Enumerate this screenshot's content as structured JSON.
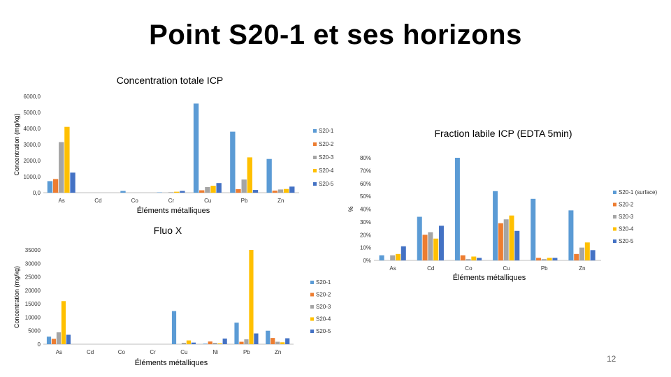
{
  "slide": {
    "title": "Point S20-1 et ses horizons",
    "page_number": "12"
  },
  "colors": {
    "S20-1": "#5B9BD5",
    "S20-2": "#ED7D31",
    "S20-3": "#A5A5A5",
    "S20-4": "#FFC000",
    "S20-5": "#4472C4"
  },
  "chart_data": [
    {
      "type": "bar",
      "title": "Concentration totale ICP",
      "xlabel": "Éléments métalliques",
      "ylabel": "Concentration (mg/kg)",
      "categories": [
        "As",
        "Cd",
        "Co",
        "Cr",
        "Cu",
        "Pb",
        "Zn"
      ],
      "ylim": [
        0,
        6000
      ],
      "yticks": [
        "0,0",
        "1000,0",
        "2000,0",
        "3000,0",
        "4000,0",
        "5000,0",
        "6000,0"
      ],
      "legend": "right",
      "series": [
        {
          "name": "S20-1",
          "values": [
            720,
            0,
            110,
            20,
            5550,
            3800,
            2100
          ]
        },
        {
          "name": "S20-2",
          "values": [
            850,
            0,
            0,
            0,
            150,
            220,
            130
          ]
        },
        {
          "name": "S20-3",
          "values": [
            3150,
            0,
            0,
            30,
            350,
            820,
            200
          ]
        },
        {
          "name": "S20-4",
          "values": [
            4100,
            0,
            0,
            60,
            430,
            2200,
            230
          ]
        },
        {
          "name": "S20-5",
          "values": [
            1250,
            0,
            0,
            110,
            600,
            170,
            380
          ]
        }
      ]
    },
    {
      "type": "bar",
      "title": "Fluo X",
      "xlabel": "Éléments métalliques",
      "ylabel": "Concentration (mg/kg)",
      "categories": [
        "As",
        "Cd",
        "Co",
        "Cr",
        "Cu",
        "Ni",
        "Pb",
        "Zn"
      ],
      "ylim": [
        0,
        35000
      ],
      "yticks": [
        "0",
        "5000",
        "10000",
        "15000",
        "20000",
        "25000",
        "30000",
        "35000"
      ],
      "legend": "right",
      "series": [
        {
          "name": "S20-1",
          "values": [
            2800,
            0,
            0,
            0,
            12300,
            200,
            8000,
            5000
          ]
        },
        {
          "name": "S20-2",
          "values": [
            2000,
            0,
            0,
            0,
            0,
            1000,
            900,
            2300
          ]
        },
        {
          "name": "S20-3",
          "values": [
            4400,
            0,
            0,
            0,
            500,
            500,
            1800,
            900
          ]
        },
        {
          "name": "S20-4",
          "values": [
            16000,
            0,
            0,
            0,
            1400,
            300,
            35000,
            700
          ]
        },
        {
          "name": "S20-5",
          "values": [
            3500,
            0,
            0,
            0,
            600,
            2100,
            4000,
            2200
          ]
        }
      ]
    },
    {
      "type": "bar",
      "title": "Fraction labile ICP (EDTA 5min)",
      "xlabel": "Éléments métalliques",
      "ylabel": "%",
      "categories": [
        "As",
        "Cd",
        "Co",
        "Cu",
        "Pb",
        "Zn"
      ],
      "ylim": [
        0,
        80
      ],
      "yticks": [
        "0%",
        "10%",
        "20%",
        "30%",
        "40%",
        "50%",
        "60%",
        "70%",
        "80%"
      ],
      "legend": "right",
      "series": [
        {
          "name": "S20-1 (surface)",
          "values": [
            4,
            34,
            80,
            54,
            48,
            39
          ]
        },
        {
          "name": "S20-2",
          "values": [
            0,
            20,
            4,
            29,
            2,
            5
          ]
        },
        {
          "name": "S20-3",
          "values": [
            4,
            22,
            1,
            32,
            1,
            10
          ]
        },
        {
          "name": "S20-4",
          "values": [
            5,
            17,
            3,
            35,
            2,
            14
          ]
        },
        {
          "name": "S20-5",
          "values": [
            11,
            27,
            2,
            23,
            2,
            8
          ]
        }
      ]
    }
  ]
}
